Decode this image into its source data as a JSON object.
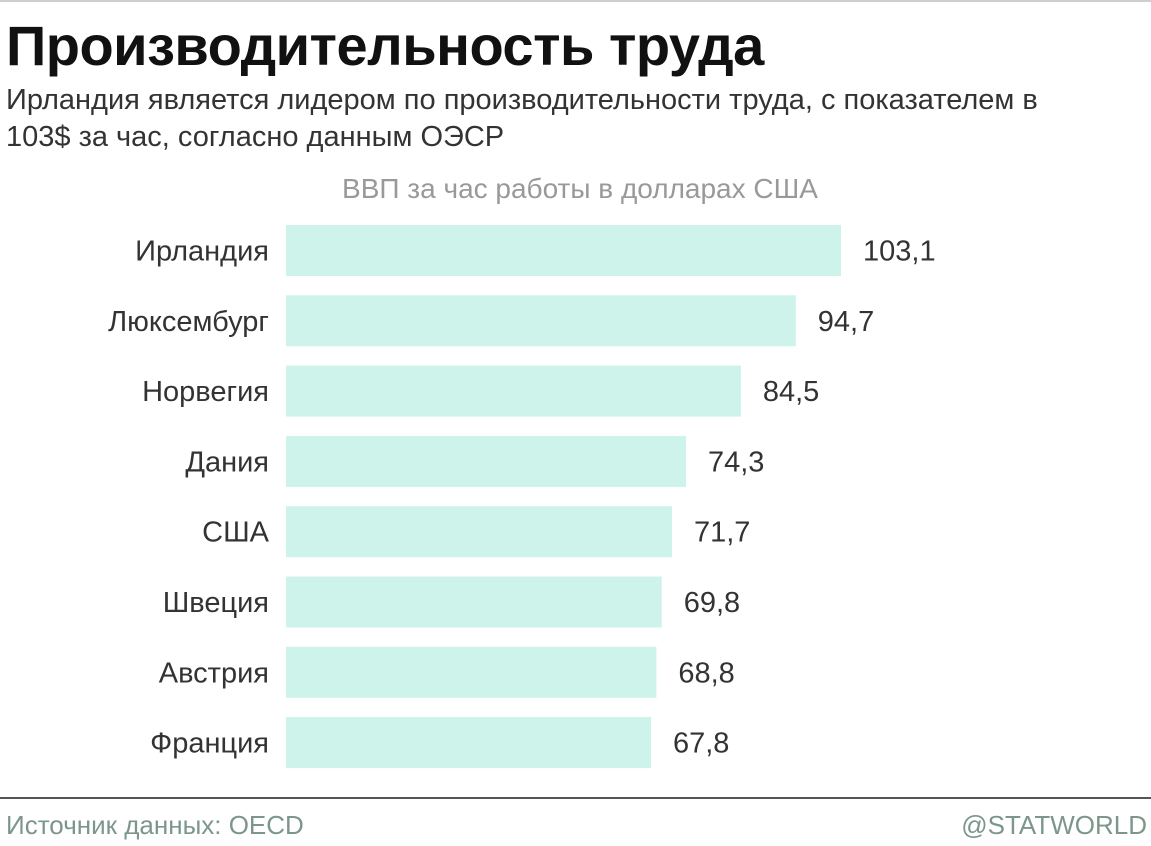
{
  "header": {
    "title": "Производительность труда",
    "subtitle": "Ирландия является лидером по производительности труда, с показателем в 103$ за час, согласно данным ОЭСР"
  },
  "chart_data": {
    "type": "bar",
    "orientation": "horizontal",
    "title": "ВВП за час работы в долларах США",
    "categories": [
      "Ирландия",
      "Люксембург",
      "Норвегия",
      "Дания",
      "США",
      "Швеция",
      "Австрия",
      "Франция"
    ],
    "values": [
      103.1,
      94.7,
      84.5,
      74.3,
      71.7,
      69.8,
      68.8,
      67.8
    ],
    "value_labels": [
      "103,1",
      "94,7",
      "84,5",
      "74,3",
      "71,7",
      "69,8",
      "68,8",
      "67,8"
    ],
    "xlim": [
      0,
      103.1
    ],
    "grid": false,
    "legend": "none",
    "bar_color": "#cdf3eb"
  },
  "footer": {
    "source": "Источник данных: OECD",
    "credit": "@STATWORLD"
  },
  "colors": {
    "bar": "#cdf3eb",
    "footer_text": "#7d968b",
    "chart_title": "#999999"
  }
}
